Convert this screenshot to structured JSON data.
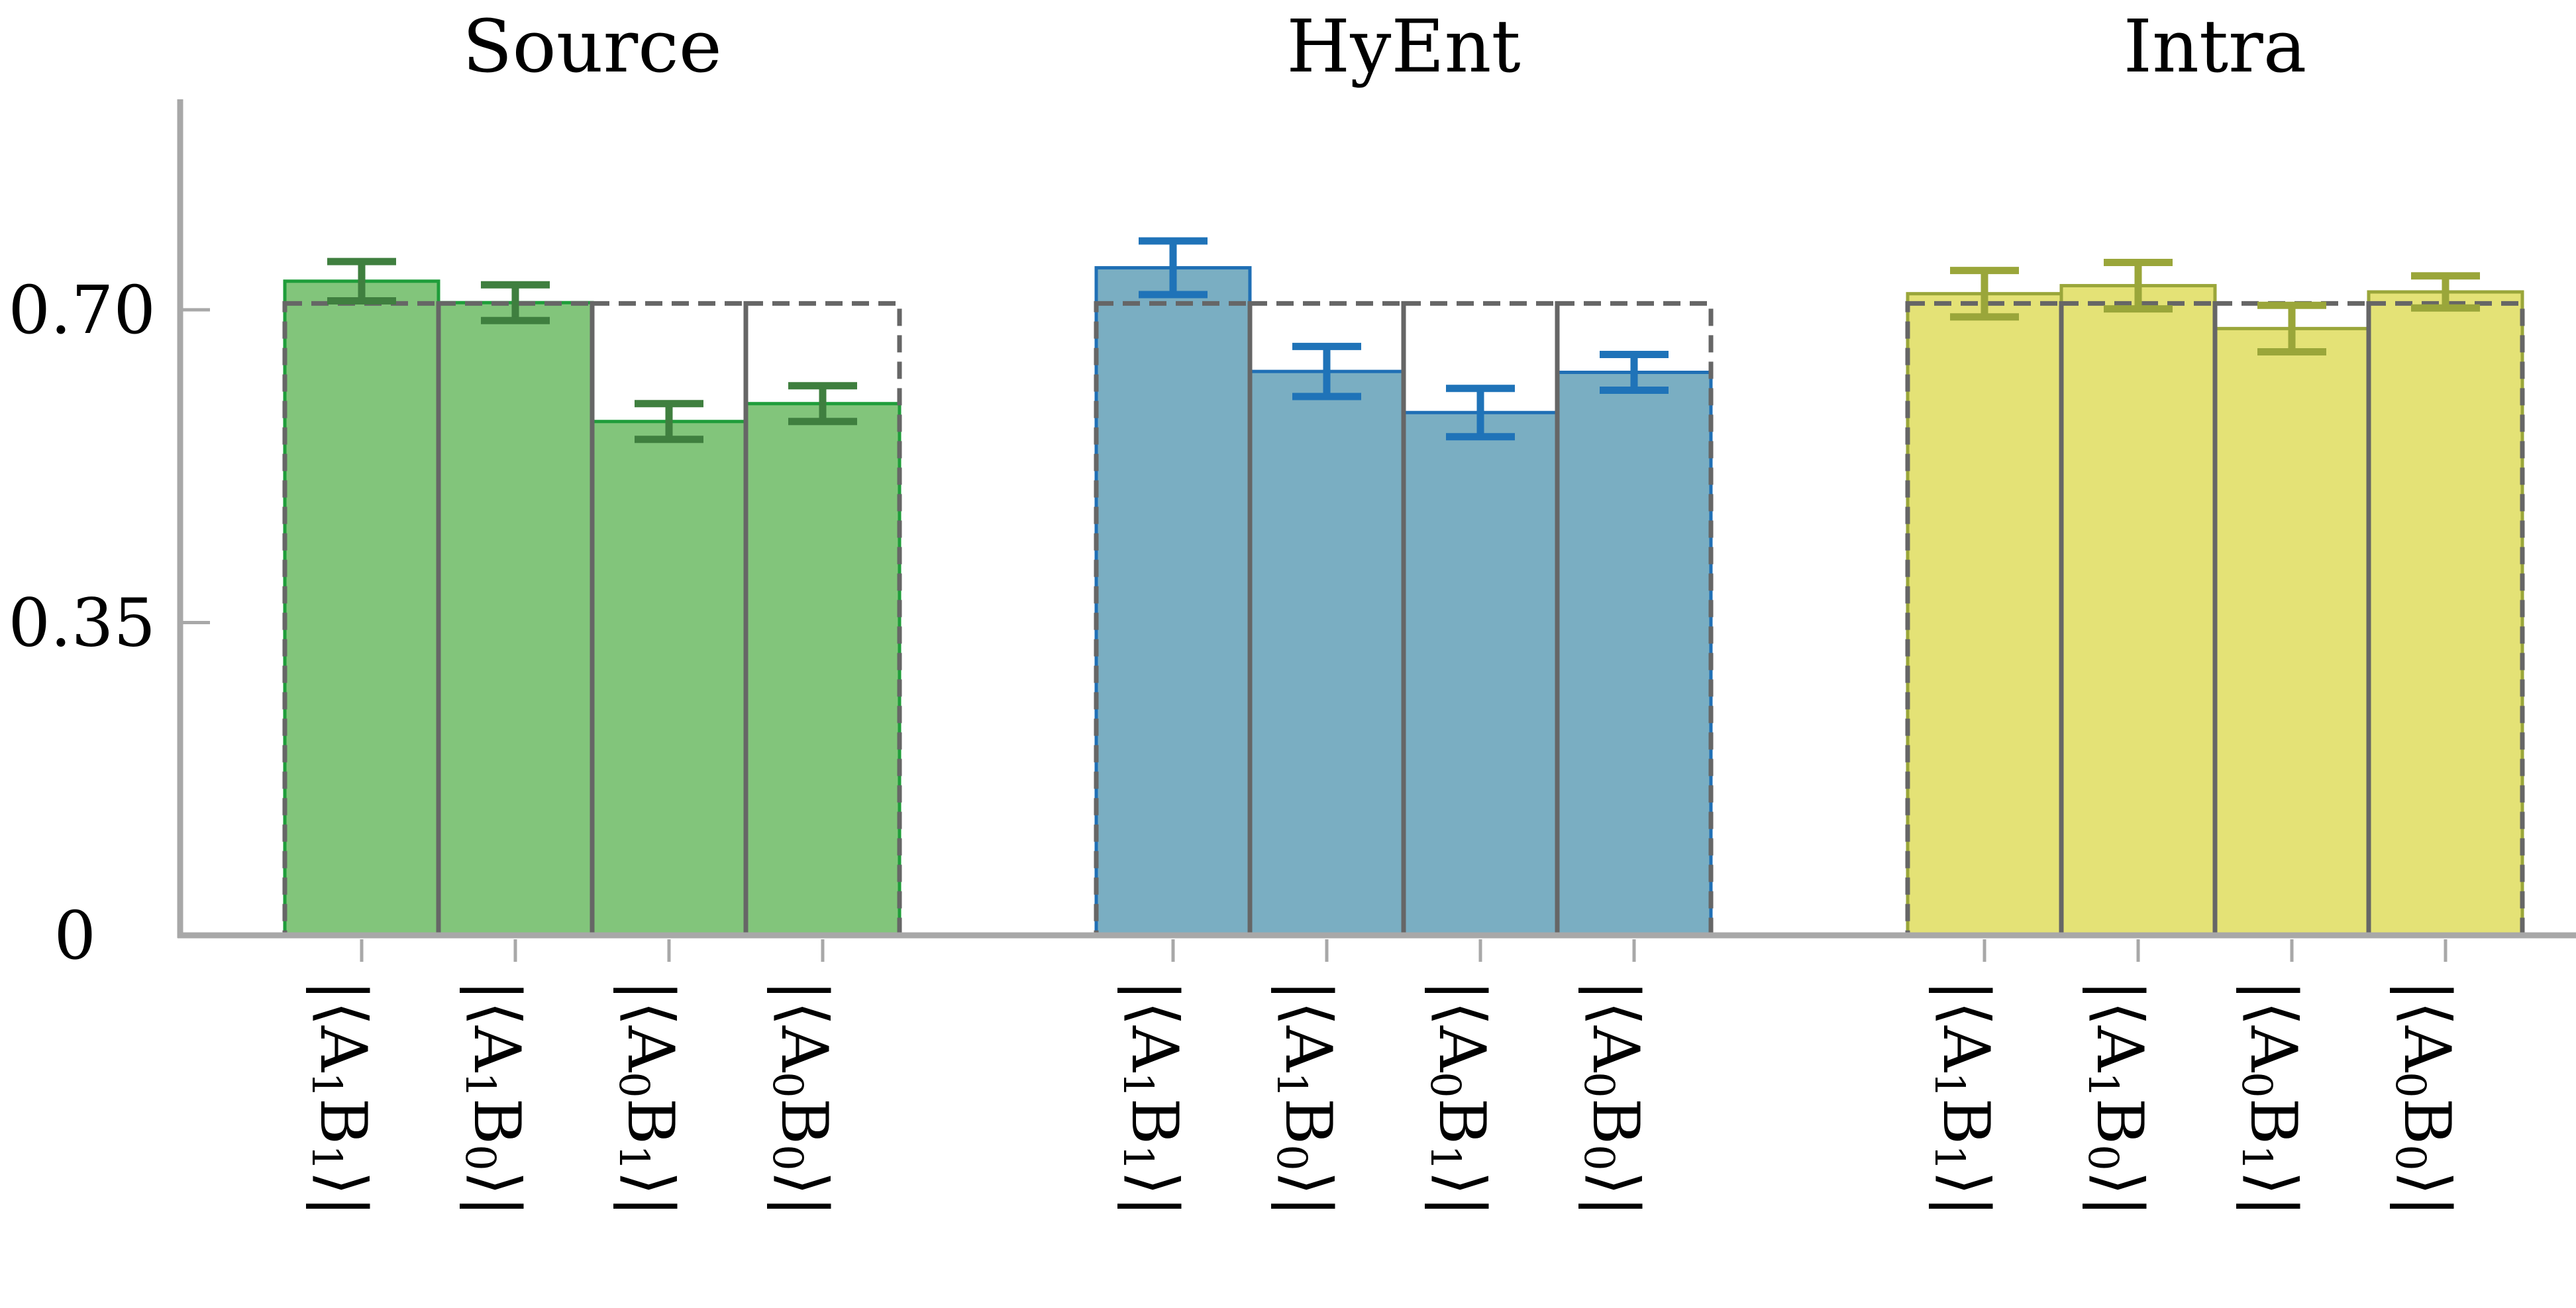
{
  "chart_data": {
    "type": "bar",
    "title": "",
    "xlabel": "",
    "ylabel": "",
    "ylim": [
      0,
      0.8
    ],
    "y_ticks": [
      0,
      0.35,
      0.7
    ],
    "y_tick_labels": [
      "0",
      "0.35",
      "0.70"
    ],
    "reference_value": 0.7071,
    "categories": [
      "|⟨A1B1⟩|",
      "|⟨A1B0⟩|",
      "|⟨A0B1⟩|",
      "|⟨A0B0⟩|"
    ],
    "grid": false,
    "legend": "none",
    "groups": [
      {
        "name": "Source",
        "color": "#82c57b",
        "edge_color": "#1f9d3a",
        "error_color": "#3f7f3f",
        "values": [
          0.732,
          0.708,
          0.575,
          0.595
        ],
        "errors": [
          0.022,
          0.02,
          0.02,
          0.02
        ]
      },
      {
        "name": "HyEnt",
        "color": "#7aaec2",
        "edge_color": "#1f6fb5",
        "error_color": "#1f73b8",
        "values": [
          0.747,
          0.631,
          0.585,
          0.63
        ],
        "errors": [
          0.03,
          0.028,
          0.027,
          0.02
        ]
      },
      {
        "name": "Intra",
        "color": "#e4e276",
        "edge_color": "#9aa63a",
        "error_color": "#9aa63a",
        "values": [
          0.718,
          0.727,
          0.679,
          0.72
        ],
        "errors": [
          0.026,
          0.026,
          0.026,
          0.018
        ]
      }
    ]
  }
}
